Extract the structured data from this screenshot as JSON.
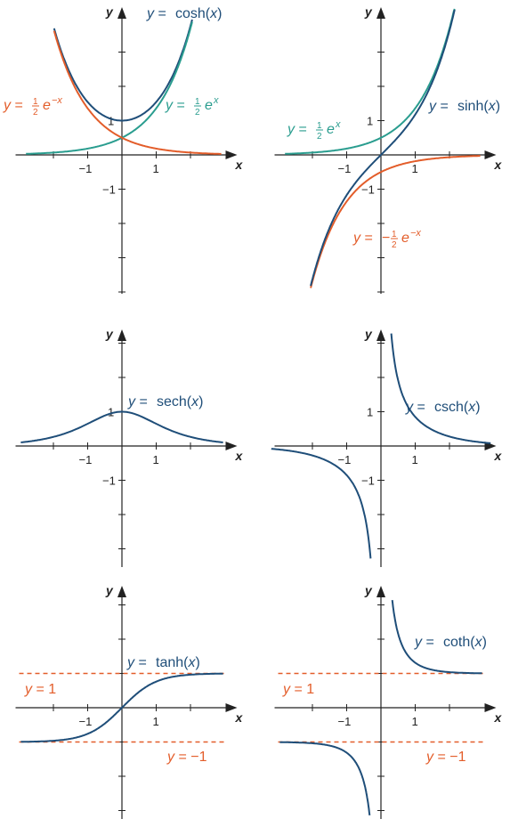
{
  "colors": {
    "navy": "#1f4e79",
    "teal": "#2a9d8f",
    "orange": "#e35d2a",
    "axis": "#222222"
  },
  "chart_data": [
    {
      "type": "line",
      "title": "",
      "xlabel": "x",
      "ylabel": "y",
      "xlim": [
        -3,
        3
      ],
      "ylim": [
        -4,
        4
      ],
      "ticks": {
        "x": [
          {
            "v": -1,
            "label": "−1"
          },
          {
            "v": 1,
            "label": "1"
          }
        ],
        "y": [
          {
            "v": 1,
            "label": "1"
          },
          {
            "v": -1,
            "label": "−1"
          }
        ]
      },
      "series": [
        {
          "name": "y = cosh(x)",
          "fn": "cosh",
          "color": "navy",
          "domain": [
            -1.98,
            2.05
          ],
          "label_lhs": "y =",
          "label_rhs": "cosh(x)"
        },
        {
          "name": "y = ½e^x",
          "fn": "halfexp",
          "color": "teal",
          "domain": [
            -2.8,
            2.05
          ],
          "label_lhs": "y =",
          "label_frac_num": "1",
          "label_frac_den": "2",
          "label_rhs": "e",
          "label_sup": "x"
        },
        {
          "name": "y = ½e^−x",
          "fn": "halfexpneg",
          "color": "orange",
          "domain": [
            -1.98,
            2.9
          ],
          "label_lhs": "y =",
          "label_frac_num": "1",
          "label_frac_den": "2",
          "label_rhs": "e",
          "label_sup": "−x"
        }
      ]
    },
    {
      "type": "line",
      "title": "",
      "xlabel": "x",
      "ylabel": "y",
      "xlim": [
        -3,
        3
      ],
      "ylim": [
        -4,
        4
      ],
      "ticks": {
        "x": [
          {
            "v": -1,
            "label": "−1"
          },
          {
            "v": 1,
            "label": "1"
          }
        ],
        "y": [
          {
            "v": 1,
            "label": "1"
          },
          {
            "v": -1,
            "label": "−1"
          }
        ]
      },
      "series": [
        {
          "name": "y = ½e^x",
          "fn": "halfexp",
          "color": "teal",
          "domain": [
            -2.8,
            2.15
          ],
          "label_lhs": "y =",
          "label_frac_num": "1",
          "label_frac_den": "2",
          "label_rhs": "e",
          "label_sup": "x"
        },
        {
          "name": "y = −½e^−x",
          "fn": "neghalfexpneg",
          "color": "orange",
          "domain": [
            -2.05,
            2.9
          ],
          "label_lhs": "y =",
          "label_neg": "−",
          "label_frac_num": "1",
          "label_frac_den": "2",
          "label_rhs": "e",
          "label_sup": "−x"
        },
        {
          "name": "y = sinh(x)",
          "fn": "sinh",
          "color": "navy",
          "domain": [
            -2.05,
            2.15
          ],
          "label_lhs": "y =",
          "label_rhs": "sinh(x)"
        }
      ]
    },
    {
      "type": "line",
      "title": "",
      "xlabel": "x",
      "ylabel": "y",
      "xlim": [
        -3,
        3
      ],
      "ylim": [
        -3.5,
        3.3
      ],
      "ticks": {
        "x": [
          {
            "v": -1,
            "label": "−1"
          },
          {
            "v": 1,
            "label": "1"
          }
        ],
        "y": [
          {
            "v": 1,
            "label": "1"
          },
          {
            "v": -1,
            "label": "−1"
          }
        ]
      },
      "series": [
        {
          "name": "y = sech(x)",
          "fn": "sech",
          "color": "navy",
          "domain": [
            -2.95,
            2.95
          ],
          "label_lhs": "y =",
          "label_rhs": "sech(x)"
        }
      ]
    },
    {
      "type": "line",
      "title": "",
      "xlabel": "x",
      "ylabel": "y",
      "xlim": [
        -3,
        3
      ],
      "ylim": [
        -3.5,
        3.3
      ],
      "ticks": {
        "x": [
          {
            "v": -1,
            "label": "−1"
          },
          {
            "v": 1,
            "label": "1"
          }
        ],
        "y": [
          {
            "v": 1,
            "label": "1"
          },
          {
            "v": -1,
            "label": "−1"
          }
        ]
      },
      "series": [
        {
          "name": "y = csch(x)",
          "fn": "csch",
          "color": "navy",
          "domain": [
            0.3,
            3.2
          ],
          "branch2": [
            -3.2,
            -0.3
          ],
          "label_lhs": "y =",
          "label_rhs": "csch(x)"
        }
      ]
    },
    {
      "type": "line",
      "title": "",
      "xlabel": "x",
      "ylabel": "y",
      "xlim": [
        -3,
        3
      ],
      "ylim": [
        -3.5,
        3.5
      ],
      "ticks": {
        "x": [
          {
            "v": -1,
            "label": "−1"
          },
          {
            "v": 1,
            "label": "1"
          }
        ],
        "y": []
      },
      "asymptotes": [
        {
          "y": 1,
          "label": "y = 1"
        },
        {
          "y": -1,
          "label": "y = −1"
        }
      ],
      "series": [
        {
          "name": "y = tanh(x)",
          "fn": "tanh",
          "color": "navy",
          "domain": [
            -2.95,
            2.95
          ],
          "label_lhs": "y =",
          "label_rhs": "tanh(x)"
        }
      ]
    },
    {
      "type": "line",
      "title": "",
      "xlabel": "x",
      "ylabel": "y",
      "xlim": [
        -3,
        3
      ],
      "ylim": [
        -3.5,
        3.5
      ],
      "ticks": {
        "x": [
          {
            "v": -1,
            "label": "−1"
          },
          {
            "v": 1,
            "label": "1"
          }
        ],
        "y": []
      },
      "asymptotes": [
        {
          "y": 1,
          "label": "y = 1"
        },
        {
          "y": -1,
          "label": "y = −1"
        }
      ],
      "series": [
        {
          "name": "y = coth(x)",
          "fn": "coth",
          "color": "navy",
          "domain": [
            0.33,
            2.95
          ],
          "branch2": [
            -2.95,
            -0.33
          ],
          "label_lhs": "y =",
          "label_rhs": "coth(x)"
        }
      ]
    }
  ]
}
